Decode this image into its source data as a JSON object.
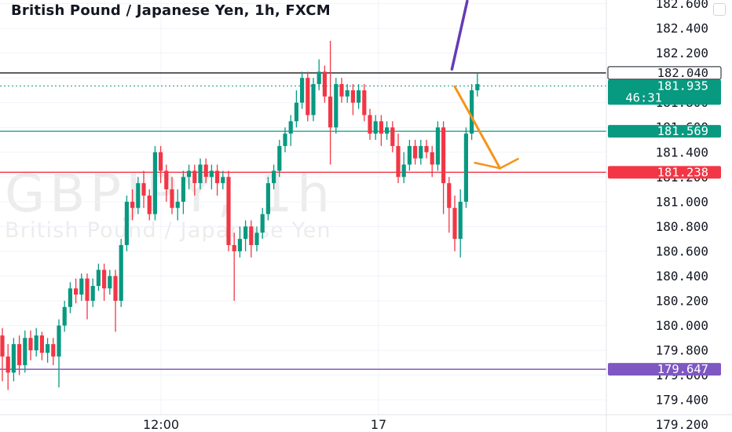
{
  "header": {
    "title": "British Pound / Japanese Yen, 1h, FXCM"
  },
  "watermark": {
    "symbol": "GBPJPY, 1h",
    "description": "British Pound / Japanese Yen"
  },
  "colors": {
    "up": "#089981",
    "down": "#f23645",
    "level_black": "#000000",
    "level_teal": "#089981",
    "level_red": "#f23645",
    "level_purple": "#673ab7",
    "arrow_orange": "#f7931a",
    "trend_purple": "#673ab7"
  },
  "chart_data": {
    "type": "candlestick",
    "title": "British Pound / Japanese Yen, 1h, FXCM",
    "symbol": "GBPJPY",
    "interval": "1h",
    "source": "FXCM",
    "y_axis": {
      "ticks": [
        179.2,
        179.4,
        179.6,
        179.8,
        180.0,
        180.2,
        180.4,
        180.6,
        180.8,
        181.0,
        181.2,
        181.4,
        181.6,
        181.8,
        182.0,
        182.2,
        182.4,
        182.6
      ],
      "tick_labels": [
        "179.200",
        "179.400",
        "179.600",
        "179.800",
        "180.000",
        "180.200",
        "180.400",
        "180.600",
        "180.800",
        "181.000",
        "181.200",
        "181.400",
        "181.600",
        "181.800",
        "182.000",
        "182.200",
        "182.400",
        "182.600"
      ],
      "range": [
        179.15,
        182.65
      ]
    },
    "x_axis": {
      "tick_labels": [
        "12:00",
        "17"
      ]
    },
    "grid": true,
    "price_tags": [
      {
        "label": "182.040",
        "value": 182.04,
        "style": "black"
      },
      {
        "label": "181.935",
        "sublabel": "46:31",
        "value": 181.935,
        "style": "teal-current"
      },
      {
        "label": "181.569",
        "value": 181.569,
        "style": "teal"
      },
      {
        "label": "181.238",
        "value": 181.238,
        "style": "red"
      },
      {
        "label": "179.647",
        "value": 179.647,
        "style": "purple"
      }
    ],
    "horizontal_levels": [
      {
        "value": 182.04,
        "color": "#000000",
        "dash": false
      },
      {
        "value": 181.935,
        "color": "#089981",
        "dash": true
      },
      {
        "value": 181.569,
        "color": "#089981",
        "dash": false
      },
      {
        "value": 181.238,
        "color": "#f23645",
        "dash": false
      },
      {
        "value": 179.647,
        "color": "#673ab7",
        "dash": false
      }
    ],
    "annotations": [
      {
        "type": "trend-line",
        "color": "#673ab7",
        "from": {
          "bar": 79.5,
          "price": 182.07
        },
        "to": {
          "bar": 82.2,
          "price": 182.62
        }
      },
      {
        "type": "arrow",
        "color": "#f7931a",
        "from": {
          "bar": 80,
          "price": 181.93
        },
        "to": {
          "bar": 88,
          "price": 181.27
        }
      }
    ],
    "candles": [
      [
        179.92,
        179.75,
        179.98,
        179.55
      ],
      [
        179.75,
        179.62,
        179.85,
        179.48
      ],
      [
        179.62,
        179.85,
        179.9,
        179.55
      ],
      [
        179.85,
        179.68,
        179.92,
        179.6
      ],
      [
        179.68,
        179.9,
        179.96,
        179.62
      ],
      [
        179.9,
        179.8,
        179.96,
        179.72
      ],
      [
        179.8,
        179.92,
        179.98,
        179.75
      ],
      [
        179.92,
        179.78,
        179.95,
        179.72
      ],
      [
        179.78,
        179.85,
        179.9,
        179.7
      ],
      [
        179.85,
        179.75,
        179.9,
        179.68
      ],
      [
        179.75,
        180.0,
        180.05,
        179.5
      ],
      [
        180.0,
        180.15,
        180.2,
        179.95
      ],
      [
        180.15,
        180.3,
        180.35,
        180.1
      ],
      [
        180.3,
        180.25,
        180.38,
        180.18
      ],
      [
        180.25,
        180.38,
        180.42,
        180.2
      ],
      [
        180.38,
        180.2,
        180.42,
        180.05
      ],
      [
        180.2,
        180.32,
        180.38,
        180.15
      ],
      [
        180.32,
        180.45,
        180.5,
        180.28
      ],
      [
        180.45,
        180.3,
        180.5,
        180.2
      ],
      [
        180.3,
        180.4,
        180.45,
        180.25
      ],
      [
        180.4,
        180.2,
        180.45,
        179.95
      ],
      [
        180.2,
        180.65,
        180.7,
        180.15
      ],
      [
        180.65,
        181.0,
        181.05,
        180.6
      ],
      [
        181.0,
        180.95,
        181.1,
        180.85
      ],
      [
        180.95,
        181.15,
        181.2,
        180.9
      ],
      [
        181.15,
        181.05,
        181.25,
        180.95
      ],
      [
        181.05,
        180.9,
        181.1,
        180.85
      ],
      [
        180.9,
        181.4,
        181.45,
        180.85
      ],
      [
        181.4,
        181.25,
        181.45,
        181.15
      ],
      [
        181.25,
        181.1,
        181.3,
        181.0
      ],
      [
        181.1,
        180.95,
        181.2,
        180.9
      ],
      [
        180.95,
        181.0,
        181.1,
        180.85
      ],
      [
        181.0,
        181.2,
        181.25,
        180.9
      ],
      [
        181.2,
        181.25,
        181.3,
        181.1
      ],
      [
        181.25,
        181.15,
        181.3,
        181.05
      ],
      [
        181.15,
        181.3,
        181.35,
        181.1
      ],
      [
        181.3,
        181.2,
        181.35,
        181.15
      ],
      [
        181.2,
        181.25,
        181.3,
        181.1
      ],
      [
        181.25,
        181.15,
        181.3,
        181.05
      ],
      [
        181.15,
        181.2,
        181.25,
        181.1
      ],
      [
        181.2,
        180.65,
        181.25,
        180.6
      ],
      [
        180.65,
        180.6,
        180.75,
        180.2
      ],
      [
        180.6,
        180.7,
        180.8,
        180.55
      ],
      [
        180.7,
        180.8,
        180.85,
        180.6
      ],
      [
        180.8,
        180.65,
        180.85,
        180.55
      ],
      [
        180.65,
        180.75,
        180.8,
        180.6
      ],
      [
        180.75,
        180.9,
        180.95,
        180.7
      ],
      [
        180.9,
        181.15,
        181.2,
        180.85
      ],
      [
        181.15,
        181.25,
        181.3,
        181.1
      ],
      [
        181.25,
        181.45,
        181.5,
        181.2
      ],
      [
        181.45,
        181.55,
        181.6,
        181.4
      ],
      [
        181.55,
        181.65,
        181.7,
        181.45
      ],
      [
        181.65,
        181.8,
        181.9,
        181.6
      ],
      [
        181.8,
        182.0,
        182.05,
        181.75
      ],
      [
        182.0,
        181.7,
        182.05,
        181.65
      ],
      [
        181.7,
        181.95,
        182.0,
        181.65
      ],
      [
        181.95,
        182.05,
        182.15,
        181.9
      ],
      [
        182.05,
        181.85,
        182.1,
        181.8
      ],
      [
        181.85,
        181.6,
        182.3,
        181.3
      ],
      [
        181.6,
        181.95,
        182.0,
        181.55
      ],
      [
        181.95,
        181.85,
        182.0,
        181.8
      ],
      [
        181.85,
        181.9,
        181.95,
        181.8
      ],
      [
        181.9,
        181.8,
        181.95,
        181.7
      ],
      [
        181.8,
        181.9,
        181.95,
        181.75
      ],
      [
        181.9,
        181.7,
        181.95,
        181.65
      ],
      [
        181.7,
        181.55,
        181.75,
        181.5
      ],
      [
        181.55,
        181.65,
        181.7,
        181.5
      ],
      [
        181.65,
        181.55,
        181.7,
        181.45
      ],
      [
        181.55,
        181.6,
        181.65,
        181.5
      ],
      [
        181.6,
        181.45,
        181.65,
        181.4
      ],
      [
        181.45,
        181.2,
        181.55,
        181.15
      ],
      [
        181.2,
        181.3,
        181.4,
        181.15
      ],
      [
        181.3,
        181.45,
        181.5,
        181.25
      ],
      [
        181.45,
        181.35,
        181.5,
        181.3
      ],
      [
        181.35,
        181.45,
        181.5,
        181.3
      ],
      [
        181.45,
        181.4,
        181.5,
        181.35
      ],
      [
        181.4,
        181.3,
        181.45,
        181.2
      ],
      [
        181.3,
        181.6,
        181.65,
        181.25
      ],
      [
        181.6,
        181.15,
        181.65,
        180.9
      ],
      [
        181.15,
        180.95,
        181.2,
        180.75
      ],
      [
        180.95,
        180.7,
        181.05,
        180.6
      ],
      [
        180.7,
        181.0,
        181.1,
        180.55
      ],
      [
        181.0,
        181.55,
        181.6,
        180.95
      ],
      [
        181.55,
        181.9,
        181.95,
        181.5
      ],
      [
        181.9,
        181.95,
        182.04,
        181.85
      ]
    ]
  }
}
